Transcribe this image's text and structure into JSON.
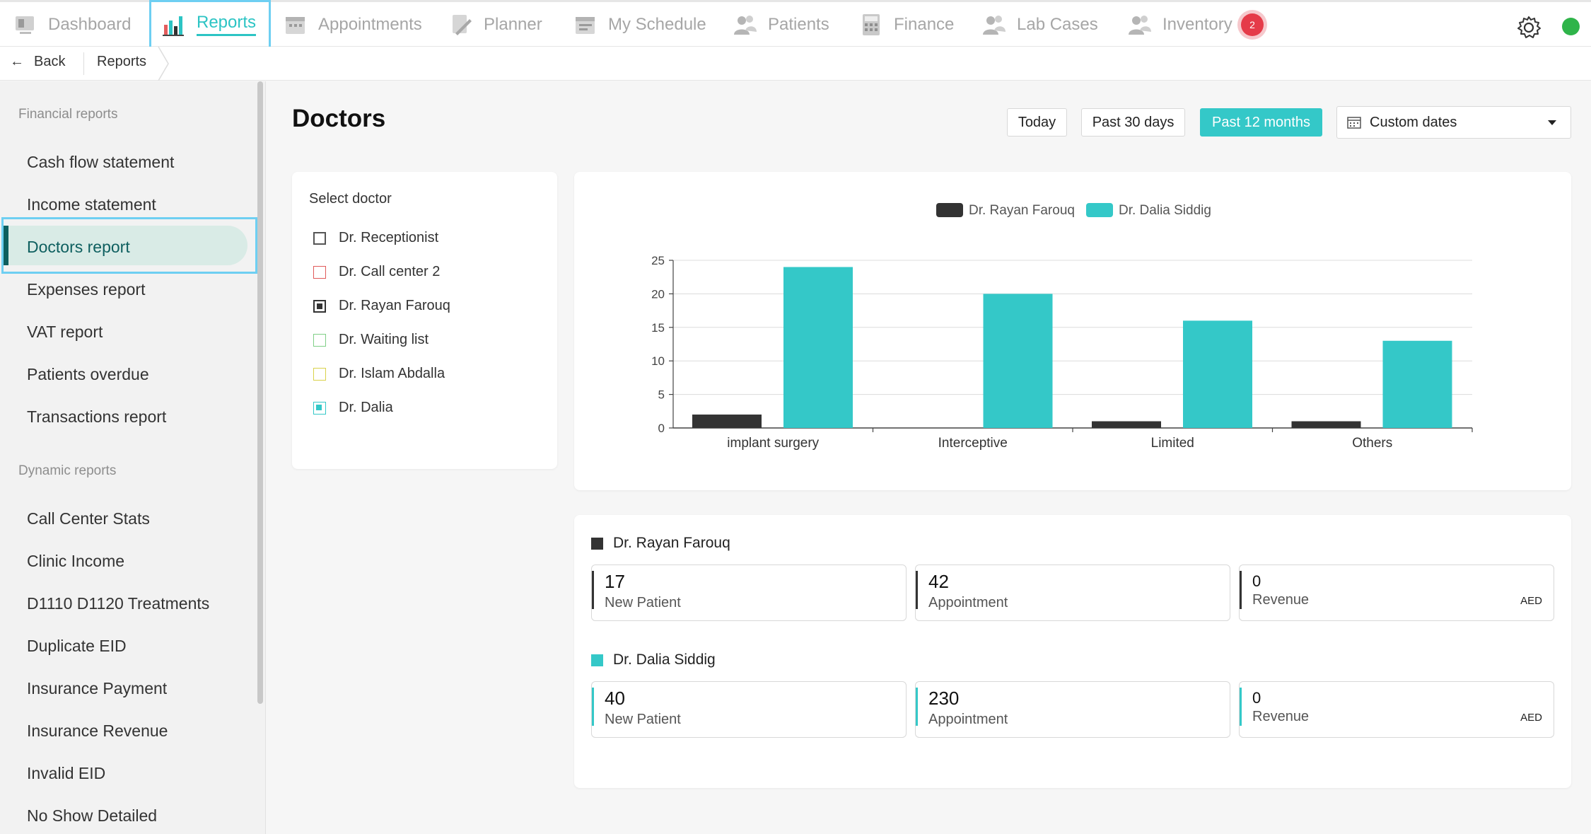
{
  "nav": {
    "items": [
      {
        "label": "Dashboard",
        "icon": "dashboard-icon"
      },
      {
        "label": "Reports",
        "icon": "reports-icon",
        "active": true
      },
      {
        "label": "Appointments",
        "icon": "appointments-icon"
      },
      {
        "label": "Planner",
        "icon": "planner-icon"
      },
      {
        "label": "My Schedule",
        "icon": "schedule-icon"
      },
      {
        "label": "Patients",
        "icon": "patients-icon"
      },
      {
        "label": "Finance",
        "icon": "finance-icon"
      },
      {
        "label": "Lab Cases",
        "icon": "lab-icon"
      },
      {
        "label": "Inventory",
        "icon": "inventory-icon"
      }
    ],
    "inventory_badge": "2",
    "accent": "#2cc4c4",
    "status_color": "#2fb44a"
  },
  "breadcrumb": {
    "back": "Back",
    "current": "Reports"
  },
  "sidebar": {
    "financial_title": "Financial reports",
    "financial": [
      "Cash flow statement",
      "Income statement",
      "Doctors report",
      "Expenses report",
      "VAT report",
      "Patients overdue",
      "Transactions report"
    ],
    "dynamic_title": "Dynamic reports",
    "dynamic": [
      "Call Center Stats",
      "Clinic Income",
      "D1110 D1120 Treatments",
      "Duplicate EID",
      "Insurance Payment",
      "Insurance Revenue",
      "Invalid EID",
      "No Show Detailed"
    ],
    "active": "Doctors report"
  },
  "page": {
    "title": "Doctors"
  },
  "filters": {
    "today": "Today",
    "past30": "Past 30 days",
    "past12": "Past 12 months",
    "custom": "Custom dates",
    "active": "Past 12 months"
  },
  "doctor_select": {
    "title": "Select doctor",
    "doctors": [
      {
        "name": "Dr. Receptionist",
        "color": "#555555",
        "checked": false
      },
      {
        "name": "Dr. Call center 2",
        "color": "#e05a5a",
        "checked": false
      },
      {
        "name": "Dr. Rayan Farouq",
        "color": "#333333",
        "checked": true
      },
      {
        "name": "Dr. Waiting list",
        "color": "#7fcf86",
        "checked": false
      },
      {
        "name": "Dr. Islam Abdalla",
        "color": "#d9d24a",
        "checked": false
      },
      {
        "name": "Dr. Dalia",
        "color": "#34c8c8",
        "checked": true
      }
    ]
  },
  "chart_data": {
    "type": "bar",
    "categories": [
      "implant surgery",
      "Interceptive",
      "Limited",
      "Others"
    ],
    "series": [
      {
        "name": "Dr. Rayan Farouq",
        "color": "#333333",
        "values": [
          2,
          0,
          1,
          1
        ]
      },
      {
        "name": "Dr. Dalia Siddig",
        "color": "#34c8c8",
        "values": [
          24,
          20,
          16,
          13
        ]
      }
    ],
    "ylim": [
      0,
      25
    ],
    "yticks": [
      0,
      5,
      10,
      15,
      20,
      25
    ],
    "legend": "top-center",
    "grid": true
  },
  "stats": [
    {
      "doctor": "Dr. Rayan Farouq",
      "color": "#333333",
      "new_patient": "17",
      "new_patient_label": "New Patient",
      "appointment": "42",
      "appointment_label": "Appointment",
      "revenue": "0",
      "revenue_label": "Revenue",
      "currency": "AED"
    },
    {
      "doctor": "Dr. Dalia Siddig",
      "color": "#34c8c8",
      "new_patient": "40",
      "new_patient_label": "New Patient",
      "appointment": "230",
      "appointment_label": "Appointment",
      "revenue": "0",
      "revenue_label": "Revenue",
      "currency": "AED"
    }
  ]
}
